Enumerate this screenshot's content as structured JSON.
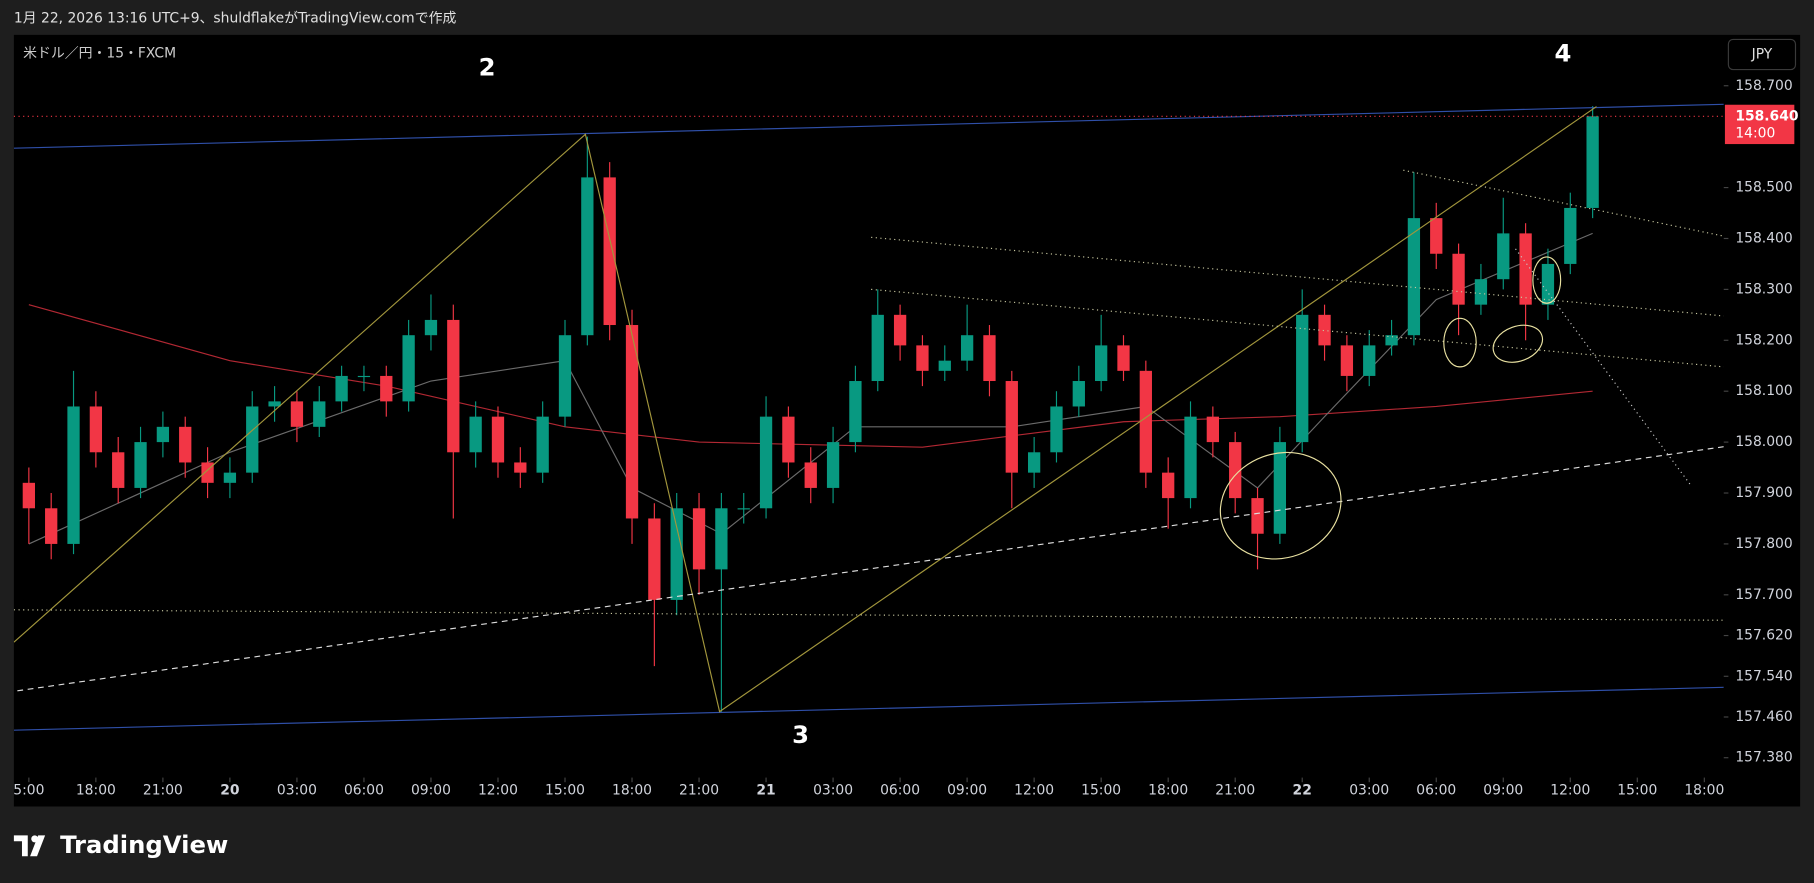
{
  "header": "1月 22, 2026 13:16 UTC+9、shuldflakeがTradingView.comで作成",
  "brand": "TradingView",
  "chart_data": {
    "type": "candlestick",
    "title": "米ドル／円・15・FXCM",
    "currency": "JPY",
    "annotations": [
      "2",
      "3",
      "4"
    ],
    "up_color": "#089981",
    "down_color": "#f23645",
    "x": [
      0,
      1,
      2,
      3,
      4,
      5,
      6,
      7,
      8,
      9,
      10,
      11,
      12,
      13,
      14,
      15,
      16,
      17,
      18,
      19,
      20,
      21,
      22,
      23,
      24,
      25,
      26,
      27,
      28,
      29,
      30,
      31,
      32,
      33,
      34,
      35,
      36,
      37,
      38,
      39,
      40,
      41,
      42,
      43,
      44,
      45,
      46,
      47,
      48,
      49,
      50,
      51,
      52,
      53,
      54,
      55,
      56,
      57,
      58,
      59,
      60,
      61,
      62,
      63,
      64,
      65,
      66,
      67,
      68,
      69,
      70
    ],
    "open": [
      157.92,
      157.87,
      157.8,
      158.07,
      157.98,
      157.91,
      158.0,
      158.03,
      157.96,
      157.92,
      157.94,
      158.07,
      158.08,
      158.03,
      158.08,
      158.13,
      158.13,
      158.08,
      158.21,
      158.24,
      157.98,
      158.05,
      157.96,
      157.94,
      158.05,
      158.21,
      158.52,
      158.23,
      157.85,
      157.69,
      157.87,
      157.75,
      157.87,
      157.87,
      158.05,
      157.96,
      157.91,
      158.0,
      158.12,
      158.25,
      158.19,
      158.14,
      158.16,
      158.21,
      158.12,
      157.94,
      157.98,
      158.07,
      158.12,
      158.19,
      158.14,
      157.94,
      157.89,
      158.05,
      158.0,
      157.89,
      157.82,
      158.0,
      158.25,
      158.19,
      158.13,
      158.19,
      158.21,
      158.44,
      158.37,
      158.27,
      158.32,
      158.41,
      158.27,
      158.35,
      158.46
    ],
    "high": [
      157.95,
      157.9,
      158.14,
      158.1,
      158.01,
      158.03,
      158.06,
      158.05,
      157.99,
      157.97,
      158.1,
      158.11,
      158.1,
      158.11,
      158.15,
      158.15,
      158.15,
      158.24,
      158.29,
      158.27,
      158.08,
      158.07,
      157.99,
      158.08,
      158.24,
      158.6,
      158.55,
      158.26,
      157.88,
      157.9,
      157.9,
      157.9,
      157.9,
      158.09,
      158.07,
      157.99,
      158.03,
      158.15,
      158.3,
      158.27,
      158.21,
      158.19,
      158.27,
      158.23,
      158.14,
      158.01,
      158.1,
      158.15,
      158.25,
      158.21,
      158.16,
      157.97,
      158.08,
      158.07,
      158.02,
      157.91,
      158.03,
      158.3,
      158.27,
      158.21,
      158.22,
      158.24,
      158.53,
      158.47,
      158.39,
      158.35,
      158.48,
      158.43,
      158.38,
      158.49,
      158.66
    ],
    "low": [
      157.8,
      157.77,
      157.78,
      157.95,
      157.88,
      157.89,
      157.97,
      157.93,
      157.89,
      157.89,
      157.92,
      158.04,
      158.0,
      158.01,
      158.06,
      158.1,
      158.05,
      158.06,
      158.18,
      157.85,
      157.95,
      157.93,
      157.91,
      157.92,
      158.03,
      158.19,
      158.2,
      157.8,
      157.56,
      157.66,
      157.7,
      157.47,
      157.84,
      157.85,
      157.93,
      157.88,
      157.88,
      157.98,
      158.1,
      158.16,
      158.11,
      158.12,
      158.14,
      158.09,
      157.87,
      157.91,
      157.96,
      158.05,
      158.1,
      158.12,
      157.91,
      157.83,
      157.87,
      157.97,
      157.86,
      157.75,
      157.8,
      157.98,
      158.16,
      158.1,
      158.11,
      158.17,
      158.19,
      158.34,
      158.21,
      158.25,
      158.3,
      158.2,
      158.24,
      158.33,
      158.44
    ],
    "close": [
      157.87,
      157.8,
      158.07,
      157.98,
      157.91,
      158.0,
      158.03,
      157.96,
      157.92,
      157.94,
      158.07,
      158.08,
      158.03,
      158.08,
      158.13,
      158.13,
      158.08,
      158.21,
      158.24,
      157.98,
      158.05,
      157.96,
      157.94,
      158.05,
      158.21,
      158.52,
      158.23,
      157.85,
      157.69,
      157.87,
      157.75,
      157.87,
      157.87,
      158.05,
      157.96,
      157.91,
      158.0,
      158.12,
      158.25,
      158.19,
      158.14,
      158.16,
      158.21,
      158.12,
      157.94,
      157.98,
      158.07,
      158.12,
      158.19,
      158.14,
      157.94,
      157.89,
      158.05,
      158.0,
      157.89,
      157.82,
      158.0,
      158.25,
      158.19,
      158.13,
      158.19,
      158.21,
      158.44,
      158.37,
      158.27,
      158.32,
      158.41,
      158.27,
      158.35,
      158.46,
      158.64
    ],
    "moving_averages": [
      {
        "color": "#b22833",
        "x": [
          0,
          9,
          16,
          24,
          30,
          40,
          49,
          56,
          63,
          70
        ],
        "values": [
          158.27,
          158.16,
          158.11,
          158.03,
          158.0,
          157.99,
          158.04,
          158.05,
          158.07,
          158.1
        ]
      },
      {
        "color": "#6b6b6b",
        "x": [
          0,
          9,
          18,
          24,
          27,
          31,
          37,
          44,
          50,
          55,
          58,
          63,
          70
        ],
        "values": [
          157.8,
          157.98,
          158.12,
          158.16,
          157.91,
          157.82,
          158.03,
          158.03,
          158.07,
          157.91,
          158.05,
          158.28,
          158.41
        ]
      }
    ],
    "last_price": {
      "value": 158.64,
      "label": "158.640"
    },
    "countdown": "14:00",
    "xlim": [
      -0.67,
      75.87
    ],
    "ylim": [
      157.341,
      158.8
    ],
    "xticks": [
      {
        "value": 0,
        "label": "5:00"
      },
      {
        "value": 3,
        "label": "18:00"
      },
      {
        "value": 6,
        "label": "21:00"
      },
      {
        "value": 9,
        "label": "20"
      },
      {
        "value": 12,
        "label": "03:00"
      },
      {
        "value": 15,
        "label": "06:00"
      },
      {
        "value": 18,
        "label": "09:00"
      },
      {
        "value": 21,
        "label": "12:00"
      },
      {
        "value": 24,
        "label": "15:00"
      },
      {
        "value": 27,
        "label": "18:00"
      },
      {
        "value": 30,
        "label": "21:00"
      },
      {
        "value": 33,
        "label": "21"
      },
      {
        "value": 36,
        "label": "03:00"
      },
      {
        "value": 39,
        "label": "06:00"
      },
      {
        "value": 42,
        "label": "09:00"
      },
      {
        "value": 45,
        "label": "12:00"
      },
      {
        "value": 48,
        "label": "15:00"
      },
      {
        "value": 51,
        "label": "18:00"
      },
      {
        "value": 54,
        "label": "21:00"
      },
      {
        "value": 57,
        "label": "22"
      },
      {
        "value": 60,
        "label": "03:00"
      },
      {
        "value": 63,
        "label": "06:00"
      },
      {
        "value": 66,
        "label": "09:00"
      },
      {
        "value": 69,
        "label": "12:00"
      },
      {
        "value": 72,
        "label": "15:00"
      },
      {
        "value": 75,
        "label": "18:00"
      }
    ],
    "yticks": [
      {
        "value": 158.7,
        "label": "158.700"
      },
      {
        "value": 158.5,
        "label": "158.500"
      },
      {
        "value": 158.4,
        "label": "158.400"
      },
      {
        "value": 158.3,
        "label": "158.300"
      },
      {
        "value": 158.2,
        "label": "158.200"
      },
      {
        "value": 158.1,
        "label": "158.100"
      },
      {
        "value": 158.0,
        "label": "158.000"
      },
      {
        "value": 157.9,
        "label": "157.900"
      },
      {
        "value": 157.8,
        "label": "157.800"
      },
      {
        "value": 157.7,
        "label": "157.700"
      },
      {
        "value": 157.62,
        "label": "157.620"
      },
      {
        "value": 157.54,
        "label": "157.540"
      },
      {
        "value": 157.46,
        "label": "157.460"
      },
      {
        "value": 157.38,
        "label": "157.380"
      }
    ]
  }
}
